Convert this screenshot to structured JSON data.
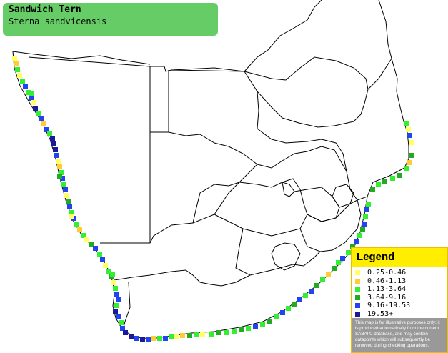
{
  "species": {
    "common_name": "Sandwich Tern",
    "scientific_name": "Sterna sandvicensis"
  },
  "legend": {
    "title": "Legend",
    "items": [
      {
        "label": "0.25-0.46",
        "color": "#ffff66"
      },
      {
        "label": "0.46-1.13",
        "color": "#ffcc33"
      },
      {
        "label": "1.13-3.64",
        "color": "#33ee33"
      },
      {
        "label": "3.64-9.16",
        "color": "#22aa22"
      },
      {
        "label": "9.16-19.53",
        "color": "#2244ee"
      },
      {
        "label": "19.53+",
        "color": "#1a1a99"
      }
    ],
    "disclaimer": "This map is for illustrative purposes only; it is produced automatically from the current SABAP2 database, and may contain datapoints which will subsequently be removed during checking operations."
  },
  "colors": {
    "title_bg": "#66cc66",
    "legend_header": "#ffee00",
    "legend_border": "#eebb00",
    "disclaimer_bg": "#999999",
    "border_lines": "#000000"
  }
}
